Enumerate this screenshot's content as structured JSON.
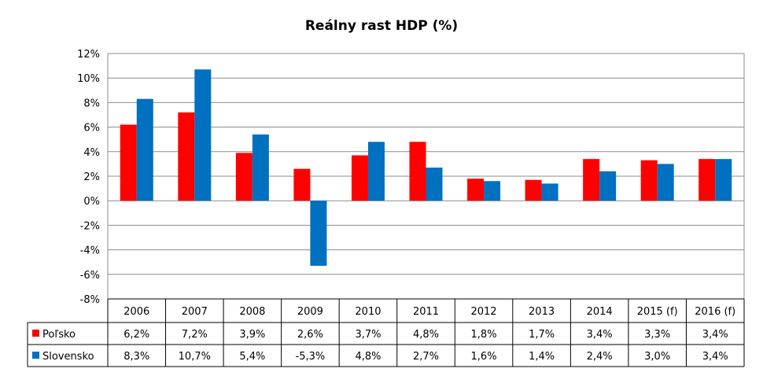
{
  "chart_data": {
    "type": "bar",
    "title": "Reálny rast HDP (%)",
    "categories": [
      "2006",
      "2007",
      "2008",
      "2009",
      "2010",
      "2011",
      "2012",
      "2013",
      "2014",
      "2015 (f)",
      "2016 (f)"
    ],
    "series": [
      {
        "name": "Poľsko",
        "color": "#ff0000",
        "values": [
          6.2,
          7.2,
          3.9,
          2.6,
          3.7,
          4.8,
          1.8,
          1.7,
          3.4,
          3.3,
          3.4
        ],
        "labels": [
          "6,2%",
          "7,2%",
          "3,9%",
          "2,6%",
          "3,7%",
          "4,8%",
          "1,8%",
          "1,7%",
          "3,4%",
          "3,3%",
          "3,4%"
        ]
      },
      {
        "name": "Slovensko",
        "color": "#0070c0",
        "values": [
          8.3,
          10.7,
          5.4,
          -5.3,
          4.8,
          2.7,
          1.6,
          1.4,
          2.4,
          3.0,
          3.4
        ],
        "labels": [
          "8,3%",
          "10,7%",
          "5,4%",
          "-5,3%",
          "4,8%",
          "2,7%",
          "1,6%",
          "1,4%",
          "2,4%",
          "3,0%",
          "3,4%"
        ]
      }
    ],
    "ylim": [
      -8,
      12
    ],
    "ystep": 2,
    "ytick_labels": [
      "12%",
      "10%",
      "8%",
      "6%",
      "4%",
      "2%",
      "0%",
      "-2%",
      "-4%",
      "-6%",
      "-8%"
    ],
    "grid": true,
    "legend": "data-table-below"
  }
}
